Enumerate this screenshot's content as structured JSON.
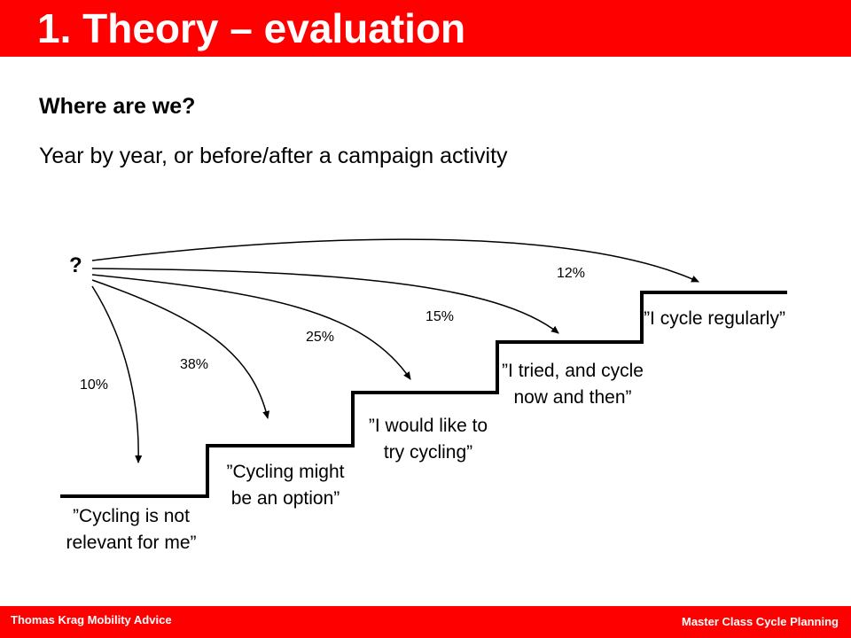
{
  "header": {
    "title": "1. Theory – evaluation"
  },
  "subtitle": "Where are we?",
  "description": "Year by year, or before/after a campaign activity",
  "diagram": {
    "origin": "?",
    "stages": [
      {
        "label": "”Cycling is not relevant for me”",
        "percent": "10%"
      },
      {
        "label": "”Cycling might be an option”",
        "percent": "38%"
      },
      {
        "label": "”I would like to try cycling”",
        "percent": "25%"
      },
      {
        "label": "”I tried, and cycle now and then”",
        "percent": "15%"
      },
      {
        "label": "”I cycle regularly”",
        "percent": "12%"
      }
    ]
  },
  "footer": {
    "left": "Thomas Krag Mobility Advice",
    "right": "Master Class Cycle Planning"
  },
  "colors": {
    "accent": "#ff0000",
    "text": "#000000",
    "background": "#ffffff"
  }
}
